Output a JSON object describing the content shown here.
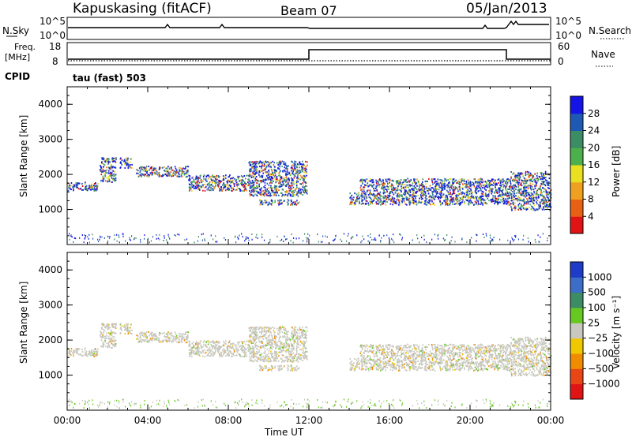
{
  "header": {
    "station": "Kapuskasing (fitACF)",
    "beam": "Beam 07",
    "date": "05/Jan/2013"
  },
  "strip_sky": {
    "left_label": "N.Sky",
    "left_ticks": [
      "10^5",
      "10^0"
    ],
    "right_ticks": [
      "10^5",
      "10^0"
    ],
    "right_label": "N.Search"
  },
  "strip_freq": {
    "left_label_1": "Freq.",
    "left_label_2": "[MHz]",
    "left_ticks": [
      "18",
      "8"
    ],
    "right_ticks": [
      "60",
      "0"
    ],
    "right_label": "Nave"
  },
  "cpid": {
    "label": "CPID",
    "mode": "tau (fast) 503"
  },
  "chart_data": [
    {
      "type": "heatmap",
      "name": "power",
      "ylabel": "Slant Range [km]",
      "yticks": [
        "4000",
        "3000",
        "2000",
        "1000"
      ],
      "ylim": [
        0,
        4500
      ],
      "colorbar_label": "Power [dB]",
      "colorbar_ticks": [
        "28",
        "24",
        "20",
        "16",
        "12",
        "8",
        "4"
      ],
      "colors": [
        "#1414e6",
        "#1e5ab4",
        "#3c8c64",
        "#4cb04c",
        "#e8e020",
        "#f0a020",
        "#e86014",
        "#e01414"
      ],
      "echo_bands": [
        {
          "t0": 0.0,
          "t1": 1.5,
          "r0": 1550,
          "r1": 1800
        },
        {
          "t0": 1.6,
          "t1": 2.4,
          "r0": 1800,
          "r1": 2500
        },
        {
          "t0": 2.6,
          "t1": 3.2,
          "r0": 2200,
          "r1": 2500
        },
        {
          "t0": 3.4,
          "t1": 6.0,
          "r0": 1950,
          "r1": 2250
        },
        {
          "t0": 6.0,
          "t1": 9.0,
          "r0": 1550,
          "r1": 2000
        },
        {
          "t0": 9.0,
          "t1": 11.9,
          "r0": 1400,
          "r1": 2400
        },
        {
          "t0": 9.5,
          "t1": 11.5,
          "r0": 1150,
          "r1": 1300
        },
        {
          "t0": 14.0,
          "t1": 14.5,
          "r0": 1150,
          "r1": 1500
        },
        {
          "t0": 14.5,
          "t1": 22.0,
          "r0": 1150,
          "r1": 1900
        },
        {
          "t0": 22.0,
          "t1": 24.0,
          "r0": 1000,
          "r1": 2100
        }
      ]
    },
    {
      "type": "heatmap",
      "name": "velocity",
      "ylabel": "Slant Range [km]",
      "yticks": [
        "4000",
        "3000",
        "2000",
        "1000"
      ],
      "ylim": [
        0,
        4500
      ],
      "colorbar_label": "Velocity [m s⁻¹]",
      "colorbar_ticks": [
        "1000",
        "500",
        "100",
        "25",
        "−25",
        "−100",
        "−500",
        "−1000"
      ],
      "colors": [
        "#1e3cc8",
        "#3c6ec8",
        "#3c8c64",
        "#66c820",
        "#c8c8c0",
        "#f0c800",
        "#f08c00",
        "#e84614",
        "#e01414"
      ],
      "xlabel": "Time UT",
      "xticks": [
        "00:00",
        "04:00",
        "08:00",
        "12:00",
        "16:00",
        "20:00",
        "00:00"
      ],
      "xlim": [
        0,
        24
      ]
    }
  ]
}
